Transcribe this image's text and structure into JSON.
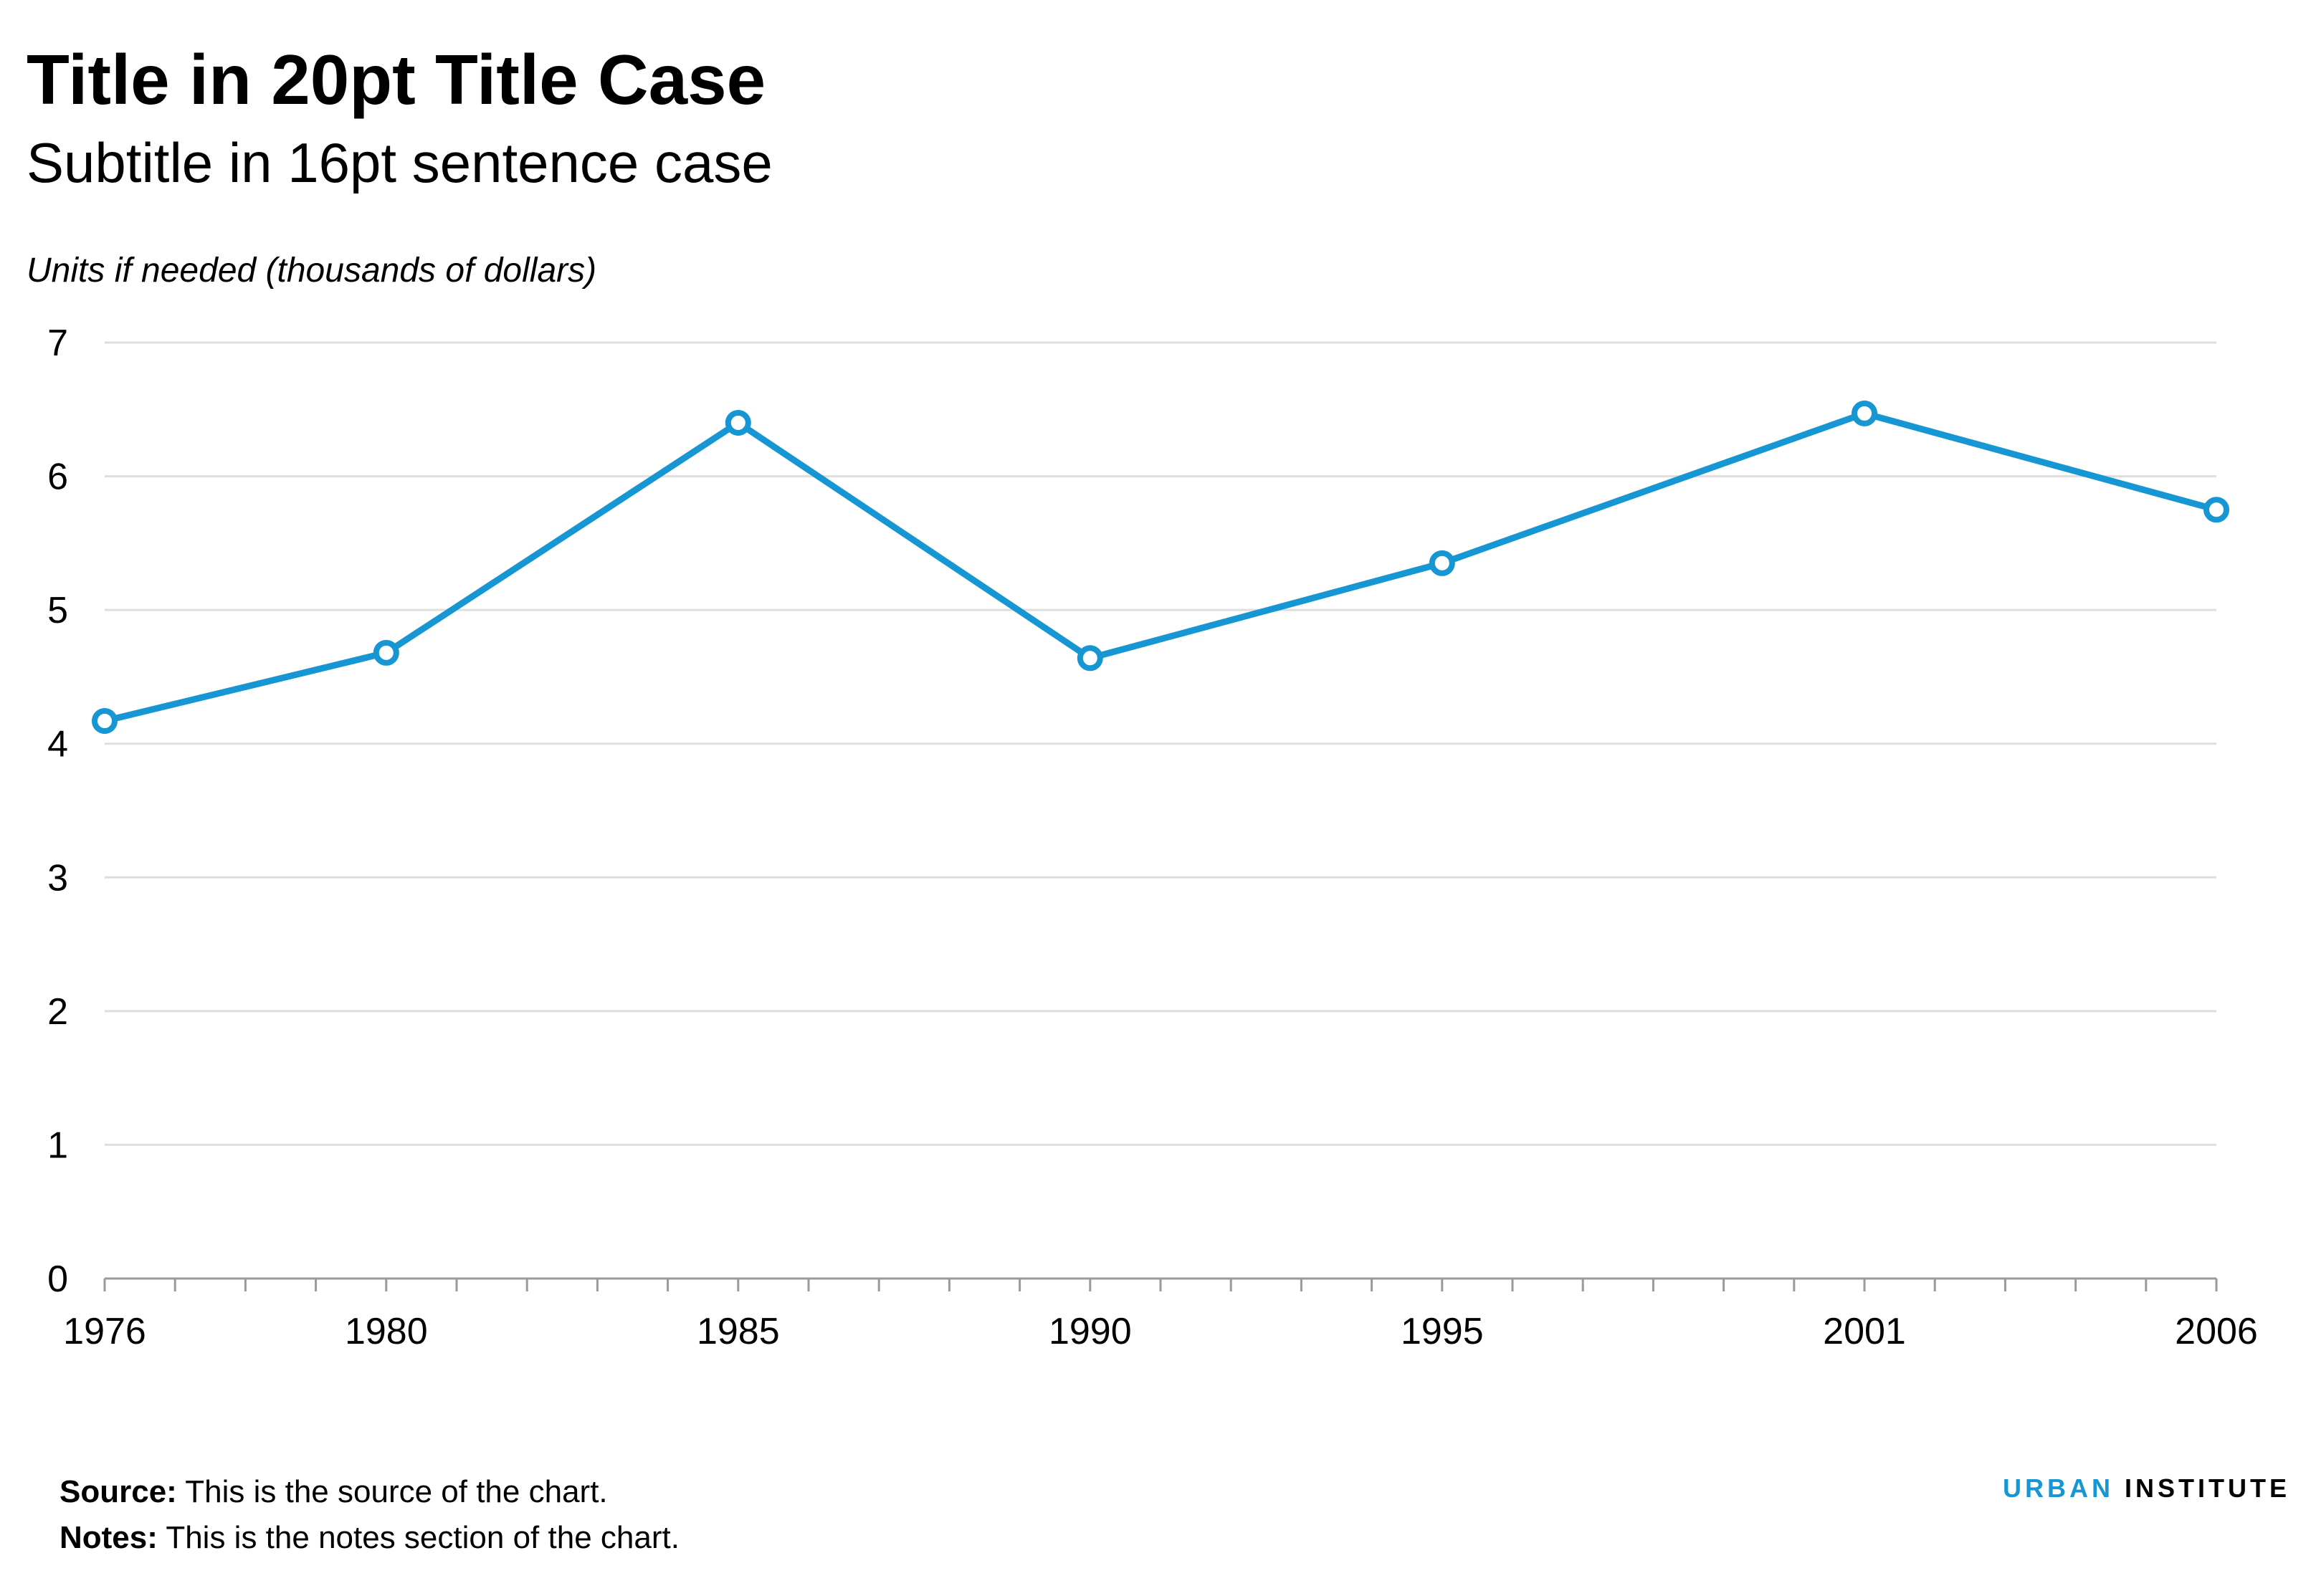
{
  "chart_data": {
    "type": "line",
    "title": "Title in 20pt Title Case",
    "subtitle": "Subtitle in 16pt sentence case",
    "ylabel": "Units if needed (thousands of dollars)",
    "xlabel": "",
    "x": [
      1976,
      1980,
      1985,
      1990,
      1995,
      2001,
      2006
    ],
    "x_tick_labels": [
      "1976",
      "1980",
      "1985",
      "1990",
      "1995",
      "2001",
      "2006"
    ],
    "y_tick_labels": [
      "0",
      "1",
      "2",
      "3",
      "4",
      "5",
      "6",
      "7"
    ],
    "series": [
      {
        "values": [
          4.17,
          4.68,
          6.4,
          4.64,
          5.35,
          6.47,
          5.75
        ]
      }
    ],
    "xlim": [
      1976,
      2006
    ],
    "ylim": [
      0,
      7
    ],
    "y_ticks": [
      0,
      1,
      2,
      3,
      4,
      5,
      6,
      7
    ],
    "grid": true,
    "line_color": "#1696d2",
    "marker": "open-circle"
  },
  "footer": {
    "source_label": "Source:",
    "source_text": " This is the source of the chart.",
    "notes_label": "Notes:",
    "notes_text": " This is the notes section of the chart."
  },
  "logo": {
    "urban": "URBAN",
    "institute": "INSTITUTE"
  }
}
